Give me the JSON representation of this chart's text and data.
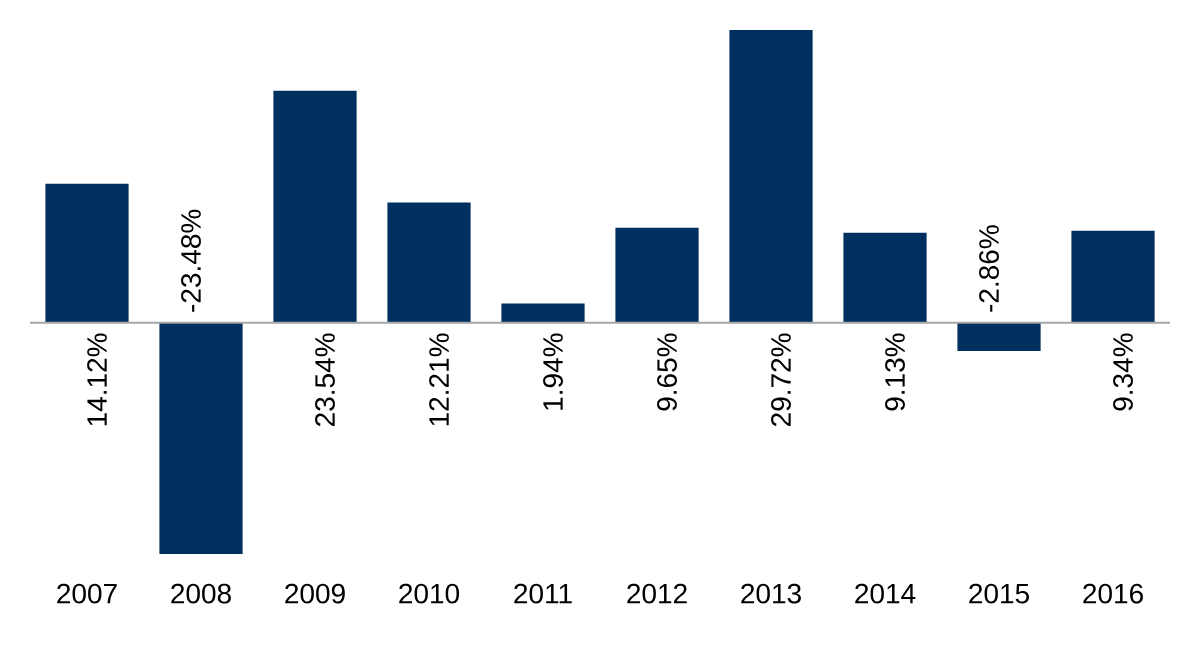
{
  "chart_data": {
    "type": "bar",
    "categories": [
      "2007",
      "2008",
      "2009",
      "2010",
      "2011",
      "2012",
      "2013",
      "2014",
      "2015",
      "2016"
    ],
    "values": [
      14.12,
      -23.48,
      23.54,
      12.21,
      1.94,
      9.65,
      29.72,
      9.13,
      -2.86,
      9.34
    ],
    "value_labels": [
      "14.12%",
      "-23.48%",
      "23.54%",
      "12.21%",
      "1.94%",
      "9.65%",
      "29.72%",
      "9.13%",
      "-2.86%",
      "9.34%"
    ],
    "color": "#00305f"
  }
}
